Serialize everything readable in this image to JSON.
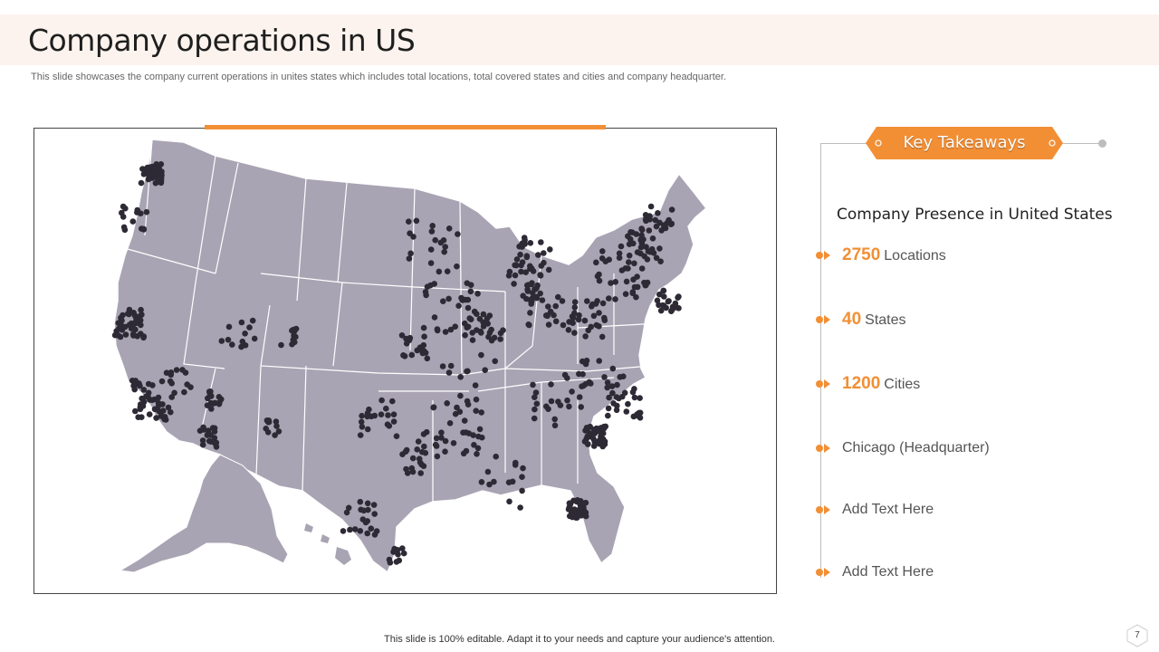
{
  "slide": {
    "title": "Company operations in US",
    "subtitle": "This slide showcases the company current operations in unites states which includes total locations, total covered states and cities and company headquarter.",
    "footer": "This slide is 100% editable. Adapt it to your needs and capture your audience's attention.",
    "page_number": "7"
  },
  "takeaways": {
    "badge_label": "Key Takeaways",
    "heading": "Company Presence in United States",
    "items": [
      {
        "number": "2750",
        "text": "Locations"
      },
      {
        "number": "40",
        "text": "States"
      },
      {
        "number": "1200",
        "text": "Cities"
      },
      {
        "number": "",
        "text": "Chicago (Headquarter)"
      },
      {
        "number": "",
        "text": "Add Text Here"
      },
      {
        "number": "",
        "text": "Add Text Here"
      }
    ]
  },
  "colors": {
    "accent": "#f28f35",
    "map_fill": "#a9a4b3",
    "location_dot": "#2e2a35",
    "title_band": "#fdf3ee"
  },
  "icons": {
    "bullet": "orange-arrow-bullet-icon",
    "location": "location-dot-icon"
  }
}
